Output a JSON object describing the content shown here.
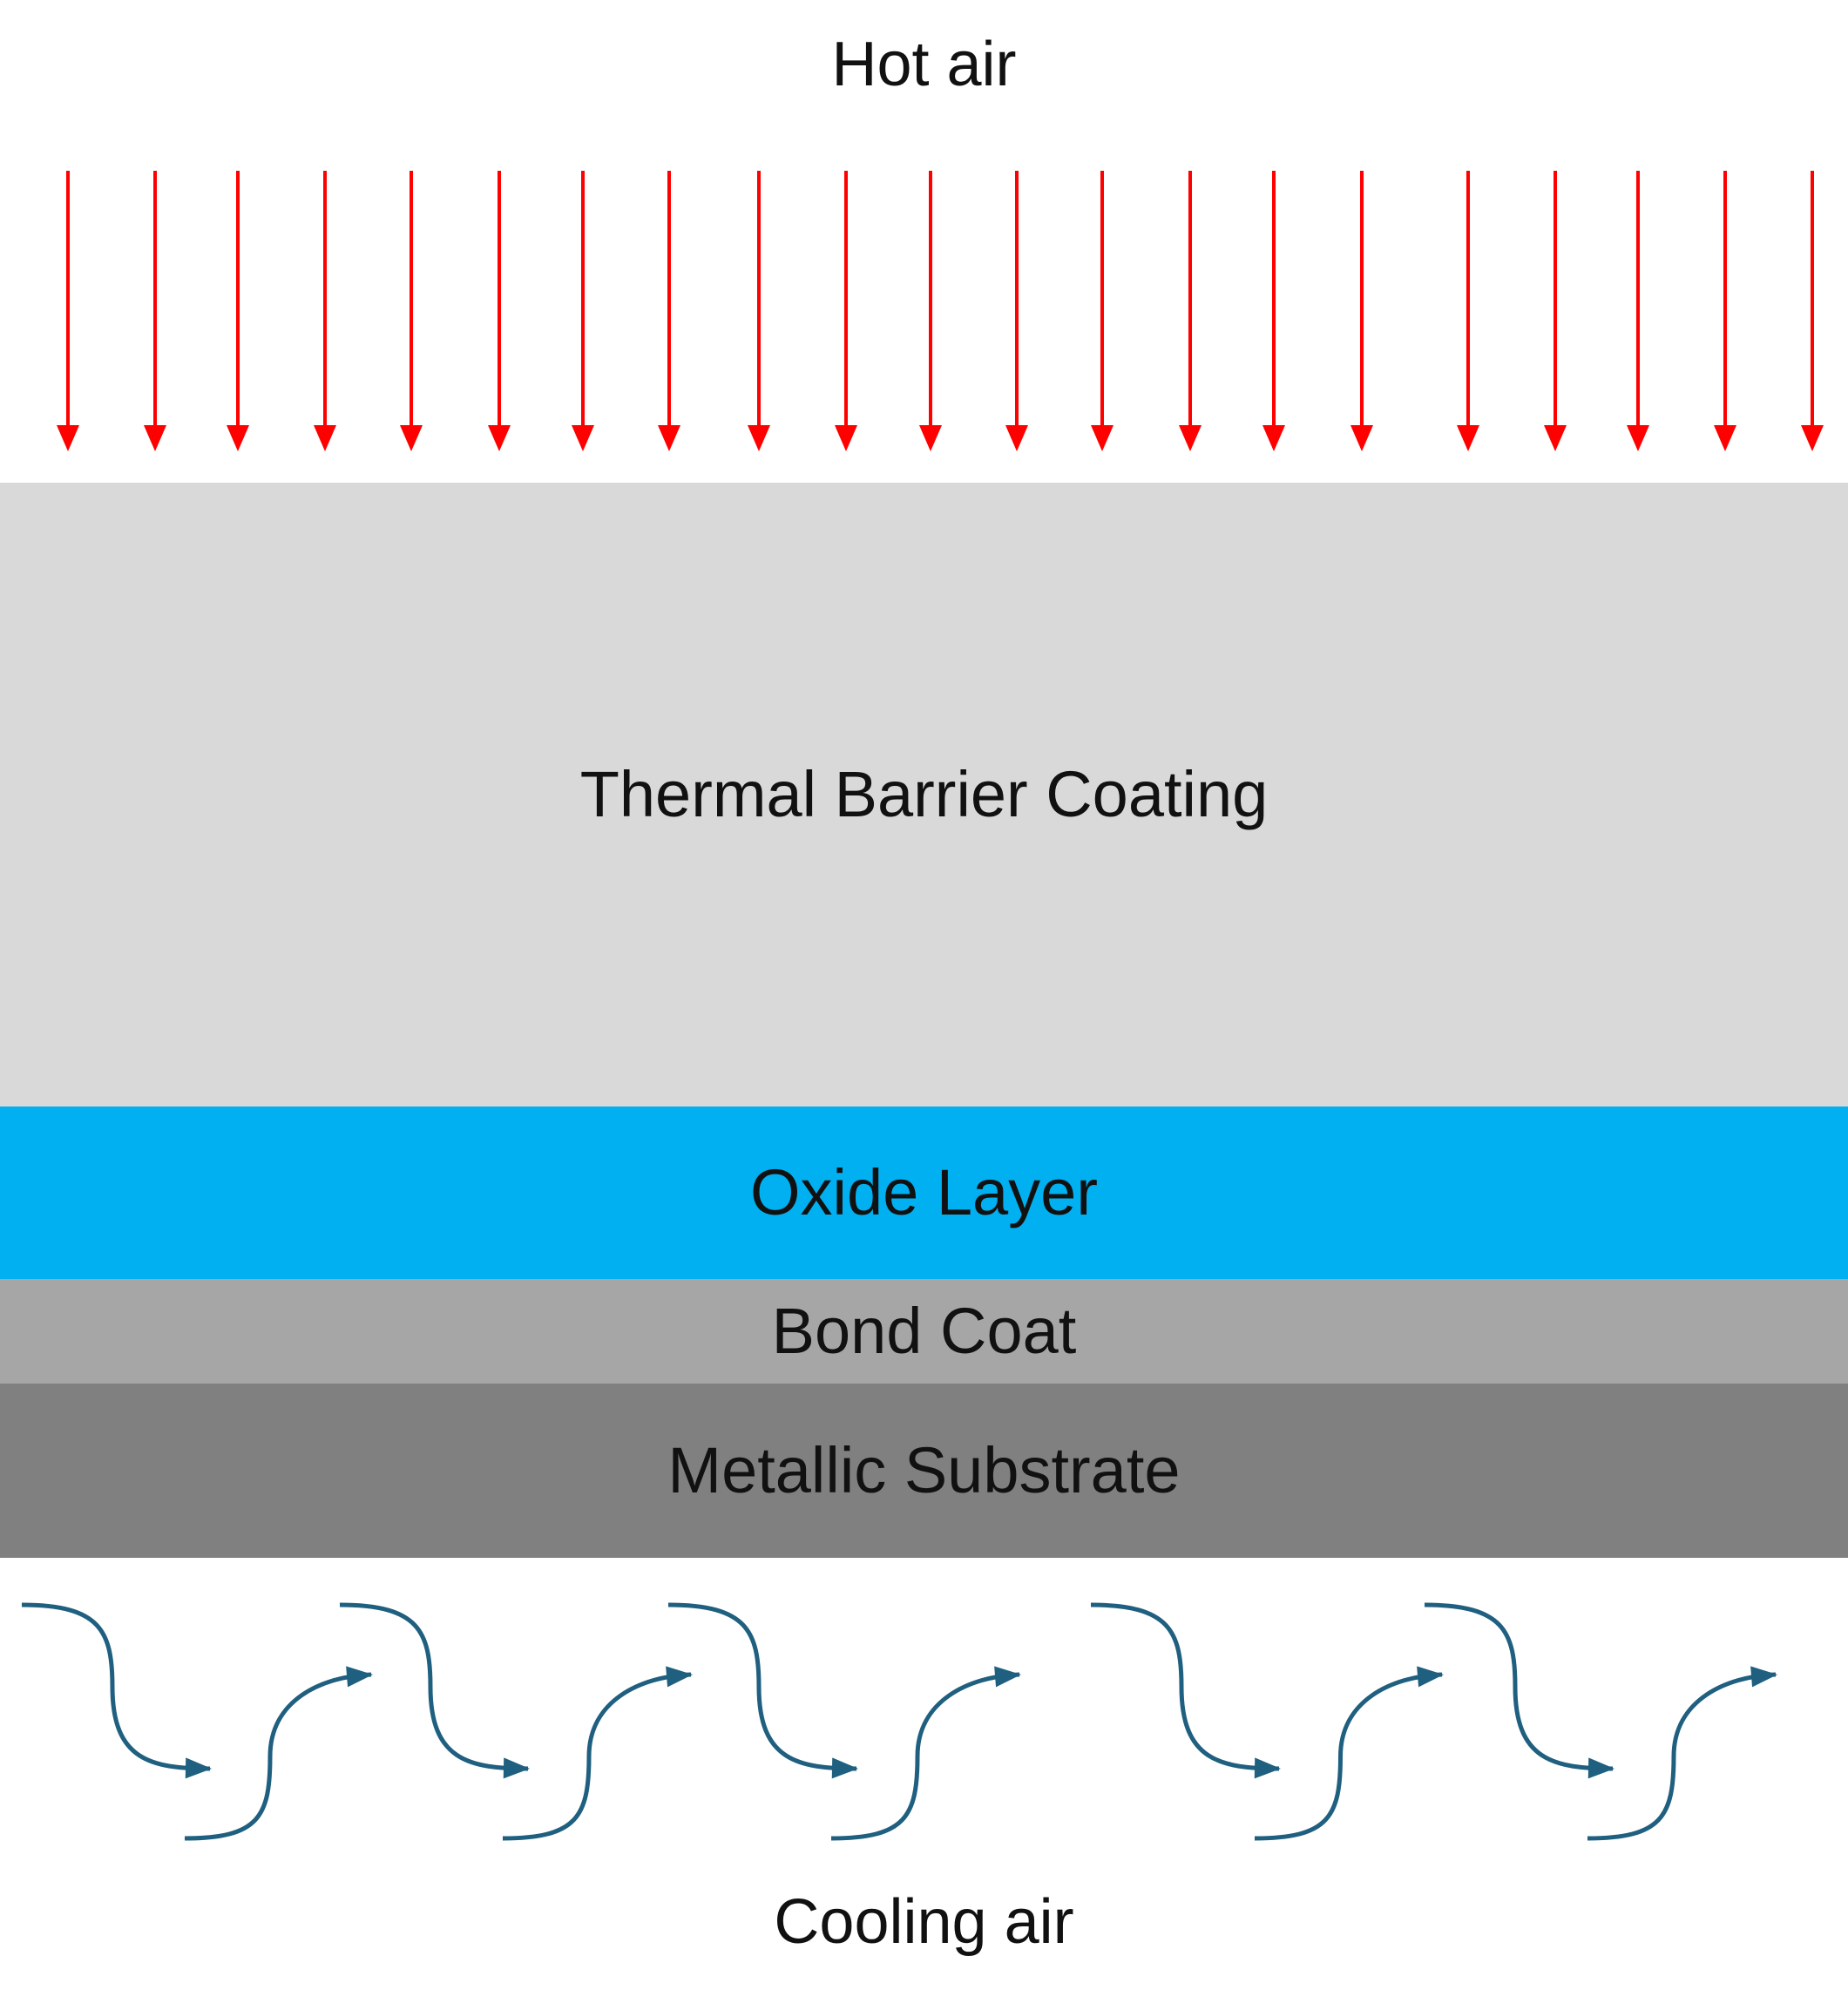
{
  "labels": {
    "hot_air": "Hot air",
    "cooling_air": "Cooling air"
  },
  "layers": [
    {
      "key": "tbc",
      "label": "Thermal Barrier Coating",
      "color": "#d9d9d9"
    },
    {
      "key": "oxide",
      "label": "Oxide Layer",
      "color": "#00b0f0"
    },
    {
      "key": "bond",
      "label": "Bond Coat",
      "color": "#a6a6a6"
    },
    {
      "key": "substrate",
      "label": "Metallic Substrate",
      "color": "#808080"
    }
  ],
  "colors": {
    "hot_arrow": "#ff0000",
    "cooling_arrow": "#1f5f7f",
    "text": "#111111"
  },
  "icons": {
    "hot_arrow": "arrow-down-icon",
    "cooling_arrow": "curved-arrow-icon"
  }
}
